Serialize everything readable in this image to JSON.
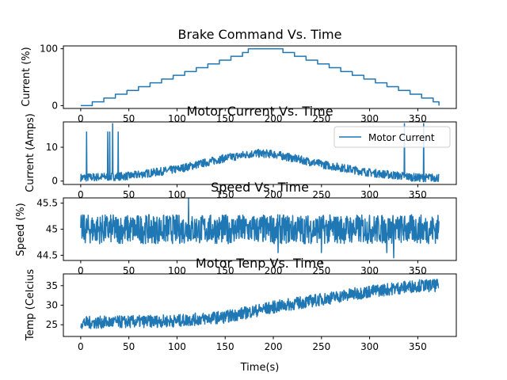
{
  "figure": {
    "xlabel": "Time(s)"
  },
  "chart_data": [
    {
      "type": "line",
      "title": "Brake Command Vs. Time",
      "ylabel": "Current (%)",
      "xlabel": "",
      "xlim": [
        -18,
        390
      ],
      "ylim": [
        -5,
        105
      ],
      "xticks": [
        0,
        50,
        100,
        150,
        200,
        250,
        300,
        350
      ],
      "yticks": [
        0,
        100
      ],
      "grid": false,
      "color": "#1f77b4",
      "series": [
        {
          "style": "step",
          "x": [
            0,
            12,
            24,
            36,
            48,
            60,
            72,
            84,
            96,
            108,
            120,
            132,
            144,
            156,
            168,
            174,
            186,
            198,
            210,
            222,
            234,
            246,
            258,
            270,
            282,
            294,
            306,
            318,
            330,
            342,
            354,
            366,
            372
          ],
          "y": [
            0,
            6.7,
            13.3,
            20,
            26.7,
            33.3,
            40,
            46.7,
            53.3,
            60,
            66.7,
            73.3,
            80,
            86.7,
            93.3,
            100,
            100,
            100,
            93.3,
            86.7,
            80,
            73.3,
            66.7,
            60,
            53.3,
            46.7,
            40,
            33.3,
            26.7,
            20,
            13.3,
            6.7,
            0
          ]
        }
      ]
    },
    {
      "type": "line",
      "title": "Motor Current Vs. Time",
      "ylabel": "Current (Amps)",
      "xlabel": "",
      "xlim": [
        -18,
        390
      ],
      "ylim": [
        -1,
        17.5
      ],
      "xticks": [
        0,
        50,
        100,
        150,
        200,
        250,
        300,
        350
      ],
      "yticks": [
        0,
        10
      ],
      "grid": false,
      "legend": "top-right",
      "color": "#1f77b4",
      "series": [
        {
          "name": "Motor Current",
          "style": "noisy",
          "x": [
            0,
            50,
            100,
            150,
            180,
            200,
            250,
            300,
            350,
            372
          ],
          "y": [
            1,
            1.5,
            3.5,
            6.8,
            8.2,
            8,
            5,
            2.5,
            1,
            1
          ],
          "noise": 1.2,
          "spikes": [
            [
              6,
              14.5
            ],
            [
              28,
              14.5
            ],
            [
              30,
              14.5
            ],
            [
              33,
              17
            ],
            [
              39,
              14.5
            ],
            [
              336,
              17
            ],
            [
              356,
              17
            ]
          ]
        }
      ]
    },
    {
      "type": "line",
      "title": "Speed Vs. Time",
      "ylabel": "Speed (%)",
      "xlabel": "",
      "xlim": [
        -18,
        390
      ],
      "ylim": [
        44.4,
        45.6
      ],
      "xticks": [
        0,
        50,
        100,
        150,
        200,
        250,
        300,
        350
      ],
      "yticks": [
        44.5,
        45.0,
        45.5
      ],
      "grid": false,
      "color": "#1f77b4",
      "series": [
        {
          "style": "noisy",
          "x": [
            0,
            372
          ],
          "y": [
            45.0,
            45.0
          ],
          "noise": 0.28,
          "spikes": [
            [
              112,
              45.6
            ],
            [
              205,
              44.55
            ],
            [
              250,
              44.55
            ],
            [
              318,
              44.55
            ],
            [
              325,
              44.45
            ]
          ]
        }
      ]
    },
    {
      "type": "line",
      "title": "Motor Tenp Vs. Time",
      "ylabel": "Temp (Celcius",
      "xlabel": "Time(s)",
      "xlim": [
        -18,
        390
      ],
      "ylim": [
        22,
        38
      ],
      "xticks": [
        0,
        50,
        100,
        150,
        200,
        250,
        300,
        350
      ],
      "yticks": [
        25,
        30,
        35
      ],
      "grid": false,
      "color": "#1f77b4",
      "series": [
        {
          "style": "noisy",
          "x": [
            0,
            100,
            150,
            200,
            250,
            300,
            350,
            372
          ],
          "y": [
            25.5,
            26,
            27,
            29.5,
            31.5,
            33.5,
            35,
            35
          ],
          "noise": 1.6,
          "spikes": []
        }
      ]
    }
  ]
}
